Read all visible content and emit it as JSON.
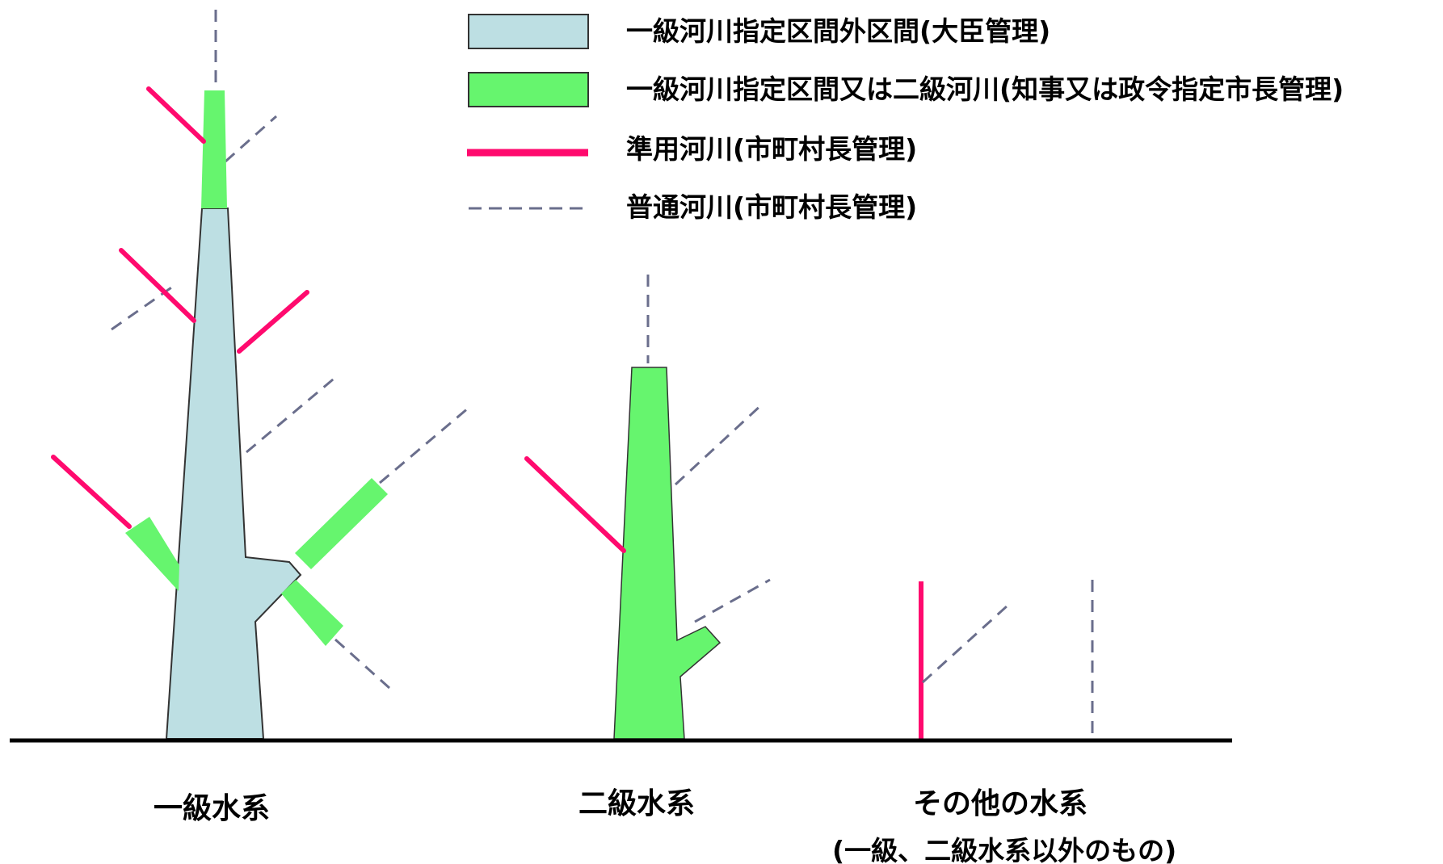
{
  "legend": {
    "items": [
      {
        "key": "class1_outside",
        "label": "一級河川指定区間外区間(大臣管理)",
        "color": "#bddfe3"
      },
      {
        "key": "class1_designated_or_class2",
        "label": "一級河川指定区間又は二級河川(知事又は政令指定市長管理)",
        "color": "#66f56e"
      },
      {
        "key": "quasi",
        "label": "準用河川(市町村長管理)",
        "color": "#ff0a6e"
      },
      {
        "key": "ordinary",
        "label": "普通河川(市町村長管理)",
        "color": "#6a6e8c"
      }
    ]
  },
  "systems": {
    "class1": {
      "label": "一級水系"
    },
    "class2": {
      "label": "二級水系"
    },
    "other": {
      "label": "その他の水系",
      "sublabel": "(一級、二級水系以外のもの)"
    }
  },
  "colors": {
    "ground": "#000000",
    "outline": "#333333"
  }
}
